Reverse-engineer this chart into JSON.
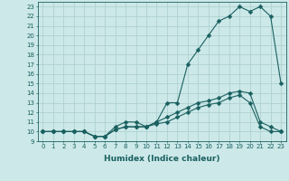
{
  "xlabel": "Humidex (Indice chaleur)",
  "bg_color": "#cce8e8",
  "line_color": "#1a6060",
  "grid_color": "#aacece",
  "xlim": [
    -0.5,
    23.5
  ],
  "ylim": [
    9,
    23.5
  ],
  "xticks": [
    0,
    1,
    2,
    3,
    4,
    5,
    6,
    7,
    8,
    9,
    10,
    11,
    12,
    13,
    14,
    15,
    16,
    17,
    18,
    19,
    20,
    21,
    22,
    23
  ],
  "yticks": [
    9,
    10,
    11,
    12,
    13,
    14,
    15,
    16,
    17,
    18,
    19,
    20,
    21,
    22,
    23
  ],
  "line1_x": [
    0,
    1,
    2,
    3,
    4,
    5,
    6,
    7,
    8,
    9,
    10,
    11,
    12,
    13,
    14,
    15,
    16,
    17,
    18,
    19,
    20,
    21,
    22,
    23
  ],
  "line1_y": [
    10,
    10,
    10,
    10,
    10,
    9.5,
    9.5,
    10.5,
    11,
    11,
    10.5,
    11,
    13,
    13,
    17,
    18.5,
    20,
    21.5,
    22,
    23,
    22.5,
    23,
    22,
    15
  ],
  "line2_x": [
    0,
    1,
    2,
    3,
    4,
    5,
    6,
    7,
    8,
    9,
    10,
    11,
    12,
    13,
    14,
    15,
    16,
    17,
    18,
    19,
    20,
    21,
    22,
    23
  ],
  "line2_y": [
    10,
    10,
    10,
    10,
    10,
    9.5,
    9.5,
    10.2,
    10.5,
    10.5,
    10.5,
    11,
    11.5,
    12,
    12.5,
    13,
    13.2,
    13.5,
    14,
    14.2,
    14,
    11,
    10.5,
    10
  ],
  "line3_x": [
    0,
    1,
    2,
    3,
    4,
    5,
    6,
    7,
    8,
    9,
    10,
    11,
    12,
    13,
    14,
    15,
    16,
    17,
    18,
    19,
    20,
    21,
    22,
    23
  ],
  "line3_y": [
    10,
    10,
    10,
    10,
    10,
    9.5,
    9.5,
    10.2,
    10.5,
    10.5,
    10.5,
    10.8,
    11,
    11.5,
    12,
    12.5,
    12.8,
    13,
    13.5,
    13.8,
    13,
    10.5,
    10,
    10
  ]
}
